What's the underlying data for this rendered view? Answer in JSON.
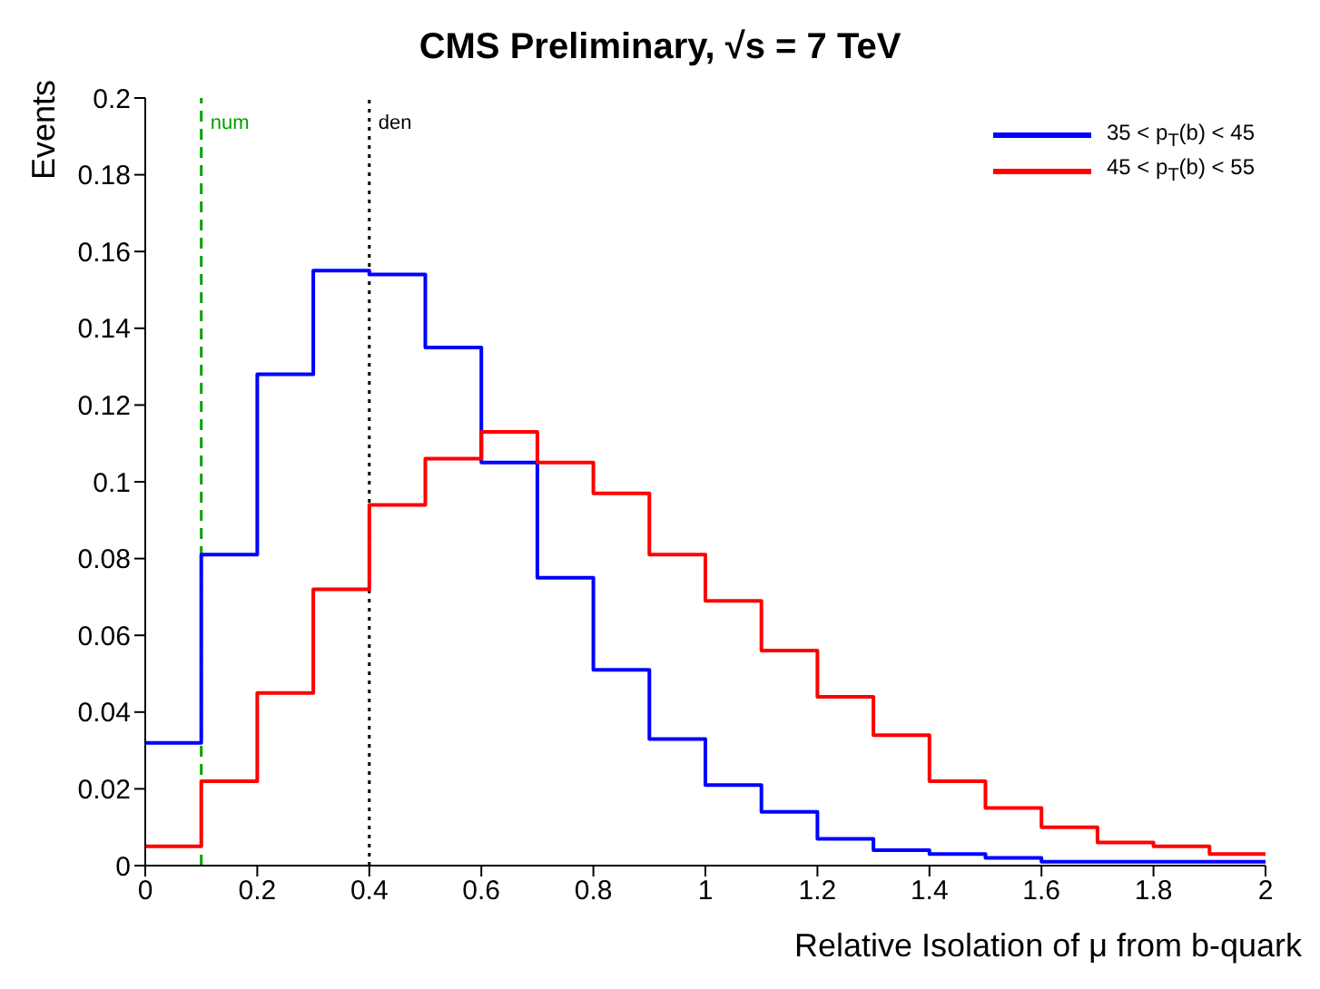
{
  "chart_data": {
    "type": "histogram",
    "title": "CMS Preliminary, √s = 7 TeV",
    "xlabel": "Relative Isolation of μ from b-quark",
    "ylabel": "Events",
    "bins": [
      0,
      0.1,
      0.2,
      0.3,
      0.4,
      0.5,
      0.6,
      0.7,
      0.8,
      0.9,
      1,
      1.1,
      1.2,
      1.3,
      1.4,
      1.5,
      1.6,
      1.7,
      1.8,
      1.9,
      2
    ],
    "series": [
      {
        "name": "35 < p$_{T}$(b) < 45",
        "color": "#0000ff",
        "values": [
          0.032,
          0.081,
          0.128,
          0.155,
          0.154,
          0.135,
          0.105,
          0.075,
          0.051,
          0.033,
          0.021,
          0.014,
          0.007,
          0.004,
          0.003,
          0.002,
          0.001,
          0.001,
          0.001,
          0.001
        ]
      },
      {
        "name": "45 < p$_{T}$(b) < 55",
        "color": "#ff0000",
        "values": [
          0.005,
          0.022,
          0.045,
          0.072,
          0.094,
          0.106,
          0.113,
          0.105,
          0.097,
          0.081,
          0.069,
          0.056,
          0.044,
          0.034,
          0.022,
          0.015,
          0.01,
          0.006,
          0.005,
          0.003
        ]
      }
    ],
    "xlim": [
      0,
      2
    ],
    "xticks": [
      0,
      0.2,
      0.4,
      0.6,
      0.8,
      1,
      1.2,
      1.4,
      1.6,
      1.8,
      2
    ],
    "ylim": [
      0,
      0.2
    ],
    "yticks": [
      0,
      0.02,
      0.04,
      0.06,
      0.08,
      0.1,
      0.12,
      0.14,
      0.16,
      0.18,
      0.2
    ],
    "ref_lines": [
      {
        "axis": "x",
        "value": 0.1,
        "label": "num",
        "color": "#00a000",
        "line_style": "dashed"
      },
      {
        "axis": "x",
        "value": 0.4,
        "label": "den",
        "color": "#000000",
        "line_style": "dotted"
      }
    ],
    "legend": "top right",
    "grid": false,
    "line_style": "solid",
    "marker": "none"
  }
}
